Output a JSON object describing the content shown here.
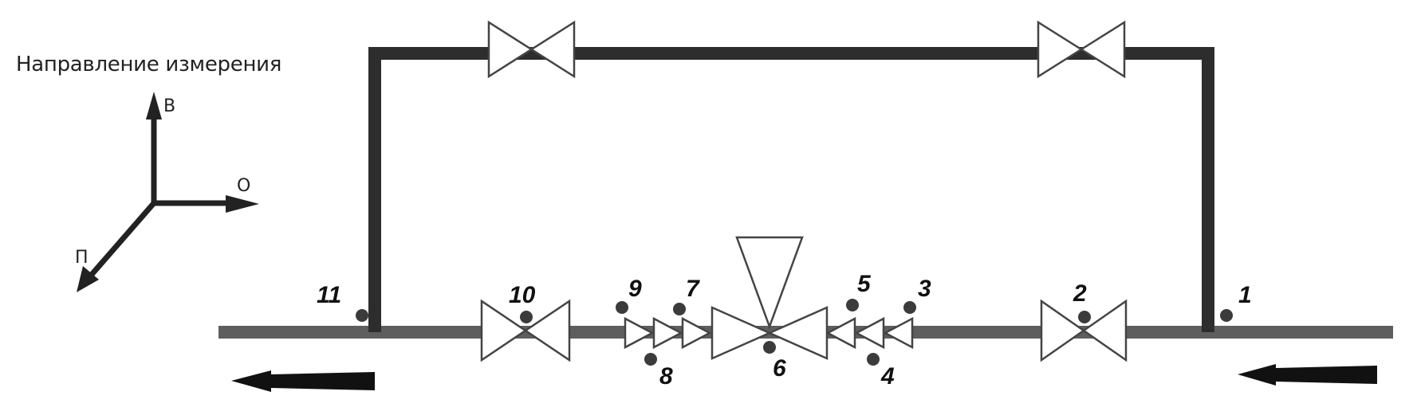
{
  "direction_title": "Направление измерения",
  "axes": {
    "up": "В",
    "east": "О",
    "south": "П"
  },
  "points": {
    "p1": "1",
    "p2": "2",
    "p3": "3",
    "p4": "4",
    "p5": "5",
    "p6": "6",
    "p7": "7",
    "p8": "8",
    "p9": "9",
    "p10": "10",
    "p11": "11"
  },
  "colors": {
    "pipe": "#5e5e5e",
    "bypass_pipe": "#2d2d2d",
    "arrow": "#111111"
  },
  "icons": [
    "flow-arrow-icon",
    "gate-valve-icon",
    "reducer-icon",
    "control-valve-icon",
    "measurement-point-icon"
  ]
}
